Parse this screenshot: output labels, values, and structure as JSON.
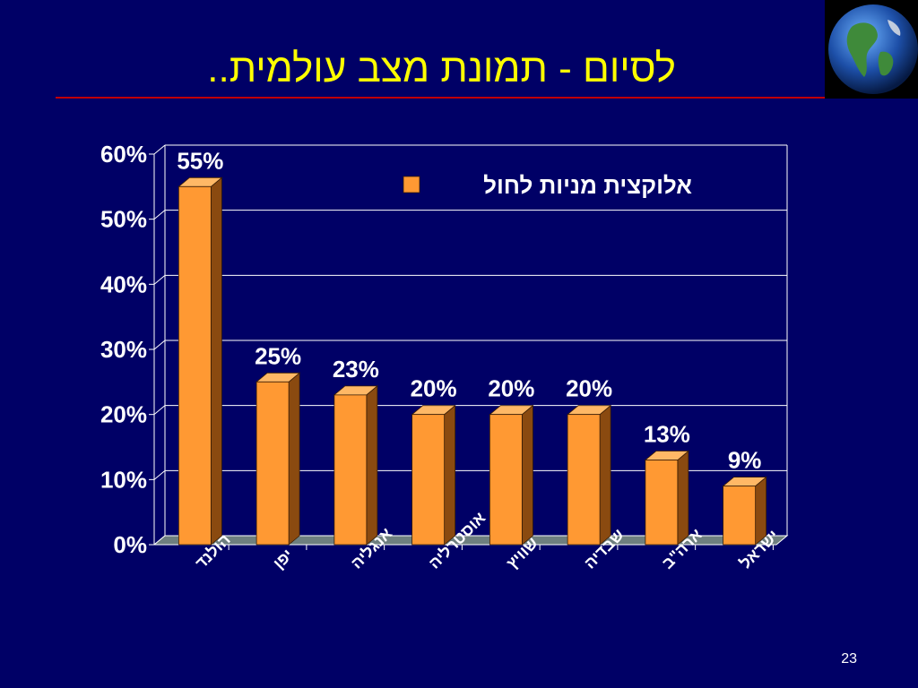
{
  "slide": {
    "title": "לסיום - תמונת מצב עולמית..",
    "page_number": "23"
  },
  "colors": {
    "background": "#000066",
    "title": "#ffff00",
    "bar_front": "#ff9933",
    "bar_side": "#8a4a10",
    "bar_top": "#ffb866",
    "floor": "#6e7f7f"
  },
  "chart_data": {
    "type": "bar",
    "categories": [
      "הולנד",
      "יפן",
      "אנגליה",
      "אוסטרליה",
      "שוויץ",
      "שבדיה",
      "ארה\"ב",
      "ישראל"
    ],
    "series": [
      {
        "name": "אלוקצית מניות לחול",
        "values": [
          55,
          25,
          23,
          20,
          20,
          20,
          13,
          9
        ]
      }
    ],
    "value_labels": [
      "55%",
      "25%",
      "23%",
      "20%",
      "20%",
      "20%",
      "13%",
      "9%"
    ],
    "y_ticks": [
      "0%",
      "10%",
      "20%",
      "30%",
      "40%",
      "50%",
      "60%"
    ],
    "ylim": [
      0,
      60
    ],
    "grid": true,
    "legend_position": "top-right",
    "three_d": true
  }
}
